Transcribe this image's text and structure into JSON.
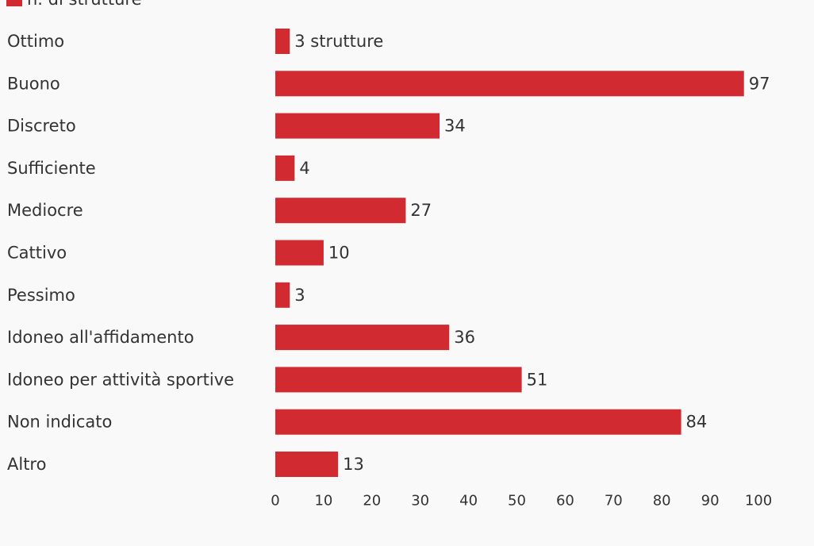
{
  "chart_data": {
    "type": "bar",
    "orientation": "horizontal",
    "legend_label": "n. di strutture",
    "legend_position": "top-left",
    "categories": [
      "Ottimo",
      "Buono",
      "Discreto",
      "Sufficiente",
      "Mediocre",
      "Cattivo",
      "Pessimo",
      "Idoneo all'affidamento",
      "Idoneo per attività sportive",
      "Non indicato",
      "Altro"
    ],
    "series": [
      {
        "name": "n. di strutture",
        "values": [
          3,
          97,
          34,
          4,
          27,
          10,
          3,
          36,
          51,
          84,
          13
        ]
      }
    ],
    "value_labels": [
      "3 strutture",
      "97",
      "34",
      "4",
      "27",
      "10",
      "3",
      "36",
      "51",
      "84",
      "13"
    ],
    "xlim": [
      0,
      100
    ],
    "xticks": [
      0,
      10,
      20,
      30,
      40,
      50,
      60,
      70,
      80,
      90,
      100
    ],
    "grid": false,
    "colors": {
      "bar": "#d12a31",
      "text": "#333333",
      "background": "#f9f9f9"
    }
  }
}
